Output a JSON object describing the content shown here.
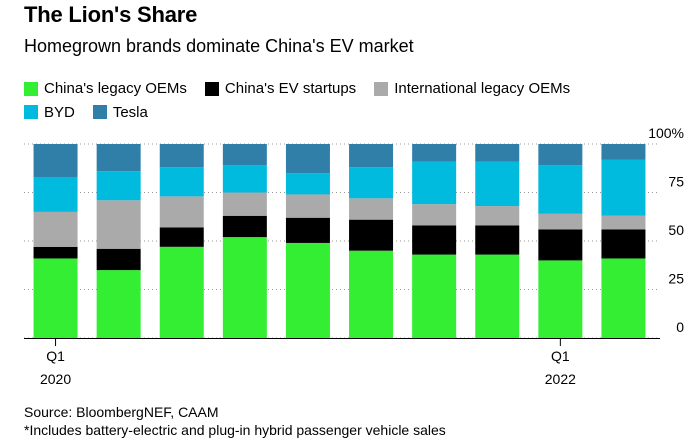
{
  "header": {
    "title": "The Lion's Share",
    "subtitle": "Homegrown brands dominate China's EV market"
  },
  "footer": {
    "source": "Source: BloombergNEF, CAAM",
    "note": "*Includes battery-electric and plug-in hybrid passenger vehicle sales"
  },
  "chart_data": {
    "type": "bar",
    "stacked": true,
    "title": "The Lion's Share",
    "subtitle": "Homegrown brands dominate China's EV market",
    "xlabel": "",
    "ylabel": "",
    "ylim": [
      0,
      100
    ],
    "y_ticks": [
      "0",
      "25",
      "50",
      "75",
      "100%"
    ],
    "y_tick_values": [
      0,
      25,
      50,
      75,
      100
    ],
    "grid": true,
    "legend_position": "top-left",
    "categories": [
      "Q1 2020",
      "Q2 2020",
      "Q3 2020",
      "Q4 2020",
      "Q1 2021",
      "Q2 2021",
      "Q3 2021",
      "Q4 2021",
      "Q1 2022",
      "Q2 2022"
    ],
    "x_tick_labels": [
      {
        "index": 0,
        "line1": "Q1",
        "line2": "2020"
      },
      {
        "index": 8,
        "line1": "Q1",
        "line2": "2022"
      }
    ],
    "x_tick_groups": [
      0,
      8
    ],
    "series": [
      {
        "name": "China's legacy OEMs",
        "color": "#33ee33",
        "values": [
          41,
          35,
          47,
          52,
          49,
          45,
          43,
          43,
          40,
          41
        ]
      },
      {
        "name": "China's EV startups",
        "color": "#000000",
        "values": [
          6,
          11,
          10,
          11,
          13,
          16,
          15,
          15,
          16,
          15
        ]
      },
      {
        "name": "International legacy OEMs",
        "color": "#aaaaaa",
        "values": [
          18,
          25,
          16,
          12,
          12,
          11,
          11,
          10,
          8,
          7
        ]
      },
      {
        "name": "BYD",
        "color": "#00bbdd",
        "values": [
          18,
          15,
          15,
          14,
          11,
          16,
          22,
          23,
          25,
          29
        ]
      },
      {
        "name": "Tesla",
        "color": "#2f7fa8",
        "values": [
          17,
          14,
          12,
          11,
          15,
          12,
          9,
          9,
          11,
          8
        ]
      }
    ]
  }
}
